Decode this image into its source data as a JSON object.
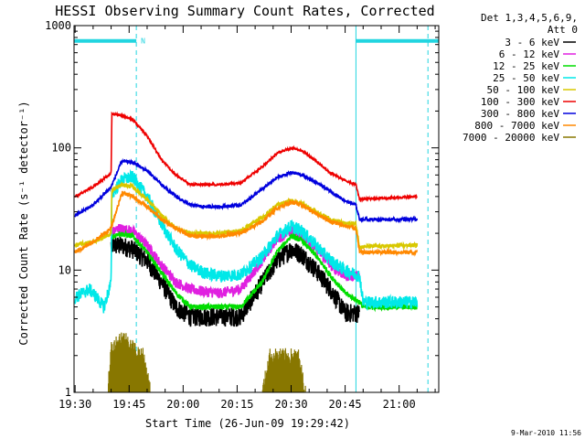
{
  "chart_data": {
    "type": "line",
    "title": "HESSI Observing Summary Count Rates, Corrected",
    "xlabel": "Start Time (26-Jun-09 19:29:42)",
    "ylabel": "Corrected Count Rate (s⁻¹ detector⁻¹)",
    "y_scale": "log",
    "ylim": [
      1,
      1000
    ],
    "xlim": [
      "19:29:42",
      "21:11:00"
    ],
    "x_ticks": [
      "19:30",
      "19:45",
      "20:00",
      "20:15",
      "20:30",
      "20:45",
      "21:00"
    ],
    "y_ticks": [
      "1",
      "10",
      "100",
      "1000"
    ],
    "grid": false,
    "legend_position": "top-right",
    "legend_header": [
      "Det 1,3,4,5,6,9,",
      "Att 0"
    ],
    "footer": "9-Mar-2010 11:56",
    "marker_n_label": "N",
    "night_bars": [
      {
        "start": "19:29:42",
        "end": "19:47:00",
        "level": 750
      },
      {
        "start": "20:48:00",
        "end": "21:11:00",
        "level": 750
      }
    ],
    "vertical_dashed": [
      "19:47:00",
      "21:08:00"
    ],
    "vertical_solid": [
      "20:48:00"
    ],
    "series": [
      {
        "name": "3 - 6 keV",
        "color": "#000000",
        "noise": 0.18,
        "x": [
          "19:40",
          "19:43",
          "19:46",
          "19:50",
          "19:54",
          "19:58",
          "20:02",
          "20:10",
          "20:16",
          "20:22",
          "20:26",
          "20:30",
          "20:33",
          "20:37",
          "20:41",
          "20:45",
          "20:49"
        ],
        "y": [
          16,
          16,
          15,
          12,
          8,
          5,
          4.2,
          4.2,
          4.2,
          8,
          12,
          15,
          13.5,
          10,
          7,
          4.5,
          4.5
        ]
      },
      {
        "name": "6 - 12 keV",
        "color": "#e020e0",
        "noise": 0.1,
        "x": [
          "19:40",
          "19:42",
          "19:46",
          "19:50",
          "19:54",
          "19:58",
          "20:02",
          "20:06",
          "20:10",
          "20:16",
          "20:22",
          "20:26",
          "20:30",
          "20:33",
          "20:37",
          "20:41",
          "20:45",
          "20:49"
        ],
        "y": [
          20,
          22,
          21,
          16,
          11,
          8,
          7,
          6.7,
          6.5,
          7,
          12,
          18,
          21,
          19,
          15,
          11,
          9,
          9
        ]
      },
      {
        "name": "12 - 25 keV",
        "color": "#00dd00",
        "noise": 0.05,
        "x": [
          "19:40",
          "19:42",
          "19:46",
          "19:50",
          "19:54",
          "19:58",
          "20:02",
          "20:10",
          "20:16",
          "20:22",
          "20:26",
          "20:30",
          "20:33",
          "20:37",
          "20:41",
          "20:45",
          "20:49",
          "20:50",
          "21:05"
        ],
        "y": [
          18,
          20,
          19,
          14,
          9.5,
          6.5,
          5,
          5,
          5,
          8,
          14,
          19,
          17.5,
          13,
          9,
          6.5,
          5.5,
          5,
          5
        ]
      },
      {
        "name": "25 - 50 keV",
        "color": "#00e8e8",
        "noise": 0.12,
        "x": [
          "19:30",
          "19:32",
          "19:34",
          "19:36",
          "19:38",
          "19:40",
          "19:40.2",
          "19:43",
          "19:46",
          "19:50",
          "19:54",
          "19:58",
          "20:02",
          "20:06",
          "20:10",
          "20:16",
          "20:22",
          "20:26",
          "20:30",
          "20:33",
          "20:37",
          "20:41",
          "20:45",
          "20:49",
          "20:50",
          "21:05"
        ],
        "y": [
          6,
          6.5,
          7,
          6,
          5,
          8,
          42,
          55,
          58,
          40,
          24,
          15,
          11,
          9.5,
          9,
          9.2,
          13,
          19,
          23,
          21,
          16,
          12,
          10,
          9,
          5.5,
          5.5
        ]
      },
      {
        "name": "50 - 100 keV",
        "color": "#d8c800",
        "noise": 0.04,
        "x": [
          "19:30",
          "19:35",
          "19:40",
          "19:40.2",
          "19:43",
          "19:46",
          "19:50",
          "19:54",
          "19:58",
          "20:02",
          "20:06",
          "20:10",
          "20:16",
          "20:22",
          "20:26",
          "20:30",
          "20:33",
          "20:37",
          "20:41",
          "20:45",
          "20:48",
          "20:49",
          "21:05"
        ],
        "y": [
          16,
          17,
          20,
          45,
          50,
          48,
          38,
          28,
          22,
          20,
          20,
          20,
          21,
          27,
          34,
          37,
          35,
          30,
          26,
          24,
          24,
          15.5,
          16
        ]
      },
      {
        "name": "100 - 300 keV",
        "color": "#ee0000",
        "noise": 0.02,
        "x": [
          "19:30",
          "19:35",
          "19:40",
          "19:40.2",
          "19:43",
          "19:46",
          "19:50",
          "19:54",
          "19:58",
          "20:02",
          "20:06",
          "20:10",
          "20:16",
          "20:22",
          "20:26",
          "20:30",
          "20:33",
          "20:37",
          "20:41",
          "20:45",
          "20:48",
          "20:49",
          "21:05"
        ],
        "y": [
          40,
          48,
          62,
          190,
          185,
          170,
          125,
          80,
          60,
          50,
          50,
          50,
          52,
          70,
          90,
          100,
          95,
          78,
          62,
          54,
          50,
          38,
          40
        ]
      },
      {
        "name": "300 - 800 keV",
        "color": "#0000dd",
        "noise": 0.03,
        "x": [
          "19:30",
          "19:35",
          "19:40",
          "19:43",
          "19:46",
          "19:50",
          "19:54",
          "19:58",
          "20:02",
          "20:06",
          "20:10",
          "20:16",
          "20:22",
          "20:26",
          "20:30",
          "20:33",
          "20:37",
          "20:41",
          "20:45",
          "20:48",
          "20:49",
          "21:05"
        ],
        "y": [
          28,
          34,
          48,
          78,
          76,
          65,
          50,
          40,
          34,
          33,
          33,
          34,
          46,
          57,
          63,
          60,
          52,
          44,
          37,
          34,
          26,
          26
        ]
      },
      {
        "name": "800 - 7000 keV",
        "color": "#ff8800",
        "noise": 0.04,
        "x": [
          "19:30",
          "19:35",
          "19:40",
          "19:43",
          "19:46",
          "19:50",
          "19:54",
          "19:58",
          "20:02",
          "20:06",
          "20:10",
          "20:16",
          "20:22",
          "20:26",
          "20:30",
          "20:33",
          "20:37",
          "20:41",
          "20:45",
          "20:48",
          "20:49",
          "21:05"
        ],
        "y": [
          14,
          17,
          22,
          43,
          40,
          33,
          26,
          22,
          19,
          19,
          19,
          20,
          25,
          32,
          36,
          34,
          29,
          25,
          23,
          22,
          14,
          14
        ]
      },
      {
        "name": "7000 - 20000 keV",
        "color": "#887700",
        "noise": 0,
        "x": [
          "19:30",
          "19:39",
          "19:40",
          "19:43",
          "19:45",
          "19:47",
          "19:49",
          "19:51",
          "20:22",
          "20:24",
          "20:32",
          "20:34",
          "21:05"
        ],
        "y": [
          1,
          1,
          2.3,
          2.9,
          2.6,
          2.2,
          2,
          1,
          1,
          2,
          2,
          1,
          1
        ]
      }
    ]
  }
}
